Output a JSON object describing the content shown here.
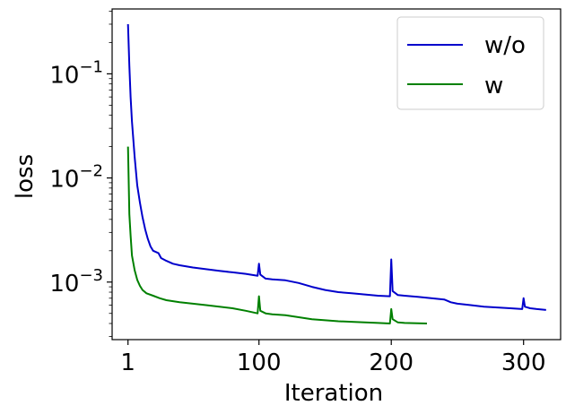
{
  "chart_data": {
    "type": "line",
    "title": "",
    "xlabel": "Iteration",
    "ylabel": "loss",
    "xscale": "linear",
    "yscale": "log",
    "xlim": [
      -11,
      328
    ],
    "ylim": [
      0.00028,
      0.42
    ],
    "x_ticks": [
      {
        "value": 1,
        "label": "1"
      },
      {
        "value": 100,
        "label": "100"
      },
      {
        "value": 200,
        "label": "200"
      },
      {
        "value": 300,
        "label": "300"
      }
    ],
    "y_ticks": [
      {
        "value": 0.1,
        "base": "10",
        "exp": "−1"
      },
      {
        "value": 0.01,
        "base": "10",
        "exp": "−2"
      },
      {
        "value": 0.001,
        "base": "10",
        "exp": "−3"
      }
    ],
    "grid": false,
    "legend_position": "top-right",
    "series": [
      {
        "name": "w/o",
        "color": "#0000cc",
        "points": [
          [
            1,
            0.3
          ],
          [
            2,
            0.12
          ],
          [
            3,
            0.06
          ],
          [
            4,
            0.035
          ],
          [
            6,
            0.016
          ],
          [
            8,
            0.0085
          ],
          [
            10,
            0.0058
          ],
          [
            12,
            0.0042
          ],
          [
            14,
            0.0032
          ],
          [
            16,
            0.0026
          ],
          [
            18,
            0.0022
          ],
          [
            20,
            0.002
          ],
          [
            24,
            0.0019
          ],
          [
            26,
            0.0017
          ],
          [
            30,
            0.0016
          ],
          [
            35,
            0.0015
          ],
          [
            40,
            0.00145
          ],
          [
            50,
            0.00138
          ],
          [
            60,
            0.00133
          ],
          [
            70,
            0.00128
          ],
          [
            80,
            0.00124
          ],
          [
            90,
            0.0012
          ],
          [
            99,
            0.00115
          ],
          [
            100,
            0.0015
          ],
          [
            101,
            0.00118
          ],
          [
            105,
            0.00108
          ],
          [
            110,
            0.00106
          ],
          [
            120,
            0.00104
          ],
          [
            130,
            0.00098
          ],
          [
            140,
            0.0009
          ],
          [
            150,
            0.00084
          ],
          [
            160,
            0.0008
          ],
          [
            170,
            0.00078
          ],
          [
            180,
            0.00076
          ],
          [
            190,
            0.00074
          ],
          [
            199,
            0.00073
          ],
          [
            200,
            0.00165
          ],
          [
            201,
            0.00082
          ],
          [
            205,
            0.00075
          ],
          [
            210,
            0.00074
          ],
          [
            220,
            0.00072
          ],
          [
            230,
            0.0007
          ],
          [
            240,
            0.00068
          ],
          [
            245,
            0.00064
          ],
          [
            250,
            0.00062
          ],
          [
            260,
            0.0006
          ],
          [
            270,
            0.00058
          ],
          [
            280,
            0.00057
          ],
          [
            290,
            0.00056
          ],
          [
            299,
            0.00055
          ],
          [
            300,
            0.0007
          ],
          [
            301,
            0.00058
          ],
          [
            305,
            0.00056
          ],
          [
            310,
            0.00055
          ],
          [
            317,
            0.00054
          ]
        ]
      },
      {
        "name": "w",
        "color": "#008000",
        "points": [
          [
            1,
            0.02
          ],
          [
            2,
            0.0045
          ],
          [
            3,
            0.0028
          ],
          [
            4,
            0.0018
          ],
          [
            6,
            0.0013
          ],
          [
            8,
            0.00105
          ],
          [
            10,
            0.00092
          ],
          [
            12,
            0.00084
          ],
          [
            15,
            0.00078
          ],
          [
            20,
            0.00074
          ],
          [
            25,
            0.0007
          ],
          [
            30,
            0.00067
          ],
          [
            40,
            0.00064
          ],
          [
            50,
            0.00062
          ],
          [
            60,
            0.0006
          ],
          [
            70,
            0.00058
          ],
          [
            80,
            0.00056
          ],
          [
            90,
            0.00053
          ],
          [
            99,
            0.0005
          ],
          [
            100,
            0.00073
          ],
          [
            101,
            0.00053
          ],
          [
            105,
            0.0005
          ],
          [
            110,
            0.00049
          ],
          [
            120,
            0.00048
          ],
          [
            130,
            0.00046
          ],
          [
            140,
            0.00044
          ],
          [
            150,
            0.00043
          ],
          [
            160,
            0.00042
          ],
          [
            170,
            0.000415
          ],
          [
            180,
            0.00041
          ],
          [
            190,
            0.000405
          ],
          [
            199,
            0.0004
          ],
          [
            200,
            0.00055
          ],
          [
            201,
            0.00044
          ],
          [
            205,
            0.00041
          ],
          [
            210,
            0.000405
          ],
          [
            220,
            0.000402
          ],
          [
            227,
            0.0004
          ]
        ]
      }
    ]
  }
}
